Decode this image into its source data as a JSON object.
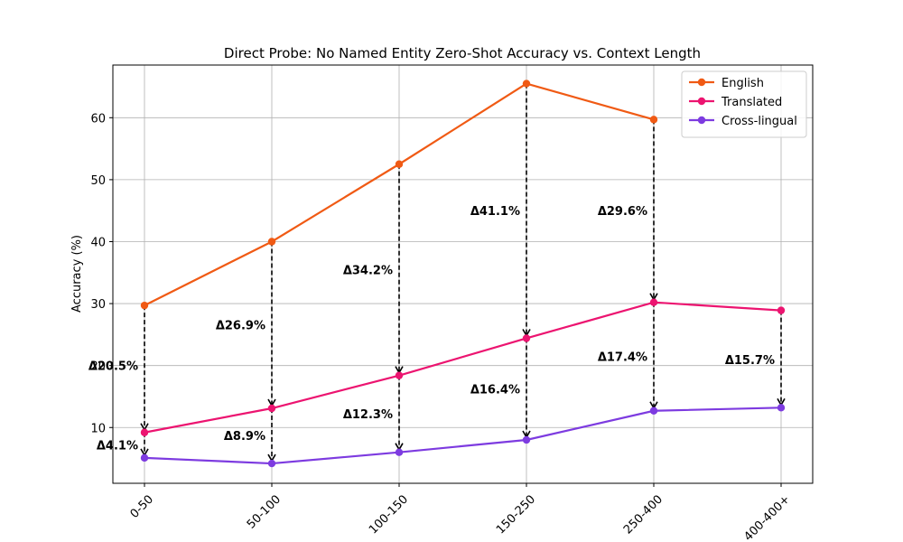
{
  "chart_data": {
    "type": "line",
    "title": "Direct Probe: No Named Entity Zero-Shot Accuracy vs. Context Length",
    "xlabel": "",
    "ylabel": "Accuracy (%)",
    "categories": [
      "0-50",
      "50-100",
      "100-150",
      "150-250",
      "250-400",
      "400-400+"
    ],
    "yticks": [
      10,
      20,
      30,
      40,
      50,
      60
    ],
    "ylim": [
      1,
      68.5
    ],
    "grid": true,
    "legend_position": "top-right",
    "series": [
      {
        "name": "English",
        "color": "#f05a14",
        "values": [
          29.7,
          40.0,
          52.5,
          65.5,
          59.7,
          null
        ]
      },
      {
        "name": "Translated",
        "color": "#ec1470",
        "values": [
          9.2,
          13.1,
          18.4,
          24.4,
          30.2,
          28.9
        ]
      },
      {
        "name": "Cross-lingual",
        "color": "#7d3be0",
        "values": [
          5.1,
          4.2,
          6.0,
          8.0,
          12.7,
          13.2
        ]
      }
    ],
    "annotations": [
      {
        "category": "0-50",
        "from": 29.7,
        "to": 9.2,
        "label": "Δ20.5%",
        "label_y": 20.0
      },
      {
        "category": "0-50",
        "from": 9.2,
        "to": 5.1,
        "label": "Δ4.1%",
        "label_y": 7.2
      },
      {
        "category": "50-100",
        "from": 40.0,
        "to": 13.1,
        "label": "Δ26.9%",
        "label_y": 26.6
      },
      {
        "category": "50-100",
        "from": 13.1,
        "to": 4.2,
        "label": "Δ8.9%",
        "label_y": 8.7
      },
      {
        "category": "100-150",
        "from": 52.5,
        "to": 18.4,
        "label": "Δ34.2%",
        "label_y": 35.5
      },
      {
        "category": "100-150",
        "from": 18.4,
        "to": 6.0,
        "label": "Δ12.3%",
        "label_y": 12.2
      },
      {
        "category": "150-250",
        "from": 65.5,
        "to": 24.4,
        "label": "Δ41.1%",
        "label_y": 45.0
      },
      {
        "category": "150-250",
        "from": 24.4,
        "to": 8.0,
        "label": "Δ16.4%",
        "label_y": 16.2
      },
      {
        "category": "250-400",
        "from": 59.7,
        "to": 30.2,
        "label": "Δ29.6%",
        "label_y": 45.0
      },
      {
        "category": "250-400",
        "from": 30.2,
        "to": 12.7,
        "label": "Δ17.4%",
        "label_y": 21.5
      },
      {
        "category": "400-400+",
        "from": 28.9,
        "to": 13.2,
        "label": "Δ15.7%",
        "label_y": 21.0
      }
    ]
  }
}
